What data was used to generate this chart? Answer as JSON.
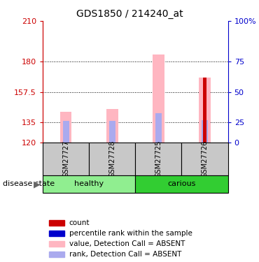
{
  "title": "GDS1850 / 214240_at",
  "samples": [
    "GSM27727",
    "GSM27728",
    "GSM27725",
    "GSM27726"
  ],
  "groups": [
    "healthy",
    "healthy",
    "carious",
    "carious"
  ],
  "group_healthy_color": "#90EE90",
  "group_carious_color": "#32CD32",
  "ylim_left": [
    120,
    210
  ],
  "yticks_left": [
    120,
    135,
    157.5,
    180,
    210
  ],
  "ytick_left_labels": [
    "120",
    "135",
    "157.5",
    "180",
    "210"
  ],
  "ytick_right_labels": [
    "0",
    "25",
    "50",
    "75",
    "100%"
  ],
  "ylabel_left_color": "#CC0000",
  "ylabel_right_color": "#0000CC",
  "value_bars": [
    143.0,
    145.0,
    185.0,
    168.0
  ],
  "value_bar_color": "#FFB6C1",
  "rank_bars": [
    136.0,
    136.0,
    142.0,
    136.5
  ],
  "rank_bar_color": "#AAAAEE",
  "count_bars": [
    null,
    null,
    null,
    168.0
  ],
  "count_bar_color": "#CC0000",
  "sample_label_color": "#C8C8C8",
  "disease_state_label": "disease state",
  "legend_items": [
    {
      "color": "#CC0000",
      "label": "count"
    },
    {
      "color": "#0000CC",
      "label": "percentile rank within the sample"
    },
    {
      "color": "#FFB6C1",
      "label": "value, Detection Call = ABSENT"
    },
    {
      "color": "#AAAAEE",
      "label": "rank, Detection Call = ABSENT"
    }
  ]
}
